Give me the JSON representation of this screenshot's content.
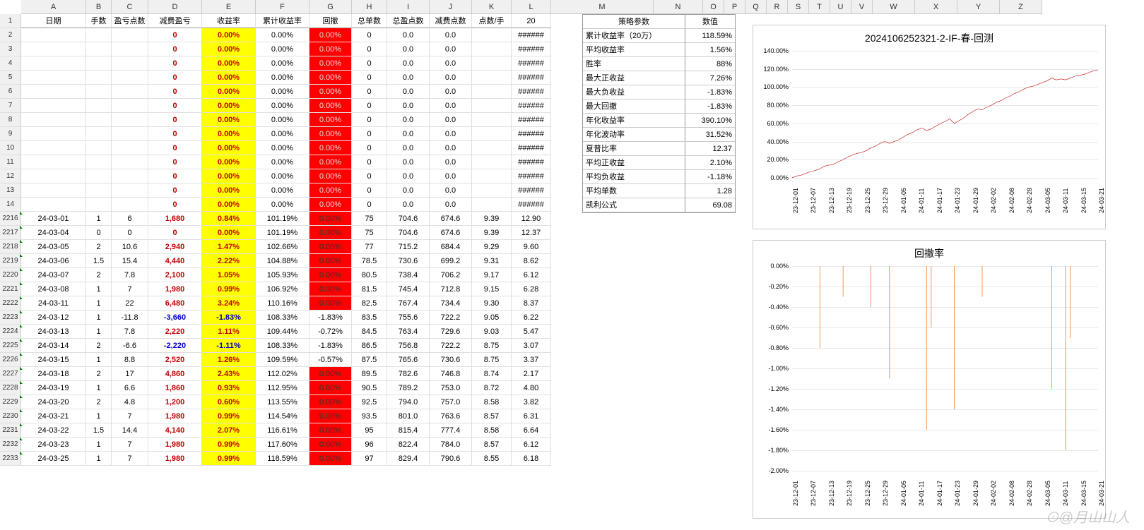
{
  "colLetters": [
    "A",
    "B",
    "C",
    "D",
    "E",
    "F",
    "G",
    "H",
    "I",
    "J",
    "K",
    "L",
    "M",
    "N",
    "O",
    "P",
    "Q",
    "R",
    "S",
    "T",
    "U",
    "V",
    "W",
    "X",
    "Y",
    "Z"
  ],
  "colLetterWidths": [
    92,
    36,
    52,
    76,
    76,
    76,
    60,
    50,
    60,
    60,
    56,
    56,
    145,
    70,
    30,
    30,
    30,
    30,
    30,
    30,
    30,
    30,
    60,
    60,
    60,
    60
  ],
  "rowNums1": [
    1,
    2,
    3,
    4,
    5,
    6,
    7,
    8,
    9,
    10,
    11,
    12,
    13,
    14
  ],
  "rowNums2": [
    2216,
    2217,
    2218,
    2219,
    2220,
    2221,
    2222,
    2223,
    2224,
    2225,
    2226,
    2227,
    2228,
    2229,
    2230,
    2231,
    2232,
    2233
  ],
  "headers": [
    "日期",
    "手数",
    "盈亏点数",
    "减费盈亏",
    "收益率",
    "累计收益率",
    "回撤",
    "总单数",
    "总盈点数",
    "减费点数",
    "点数/手",
    "20"
  ],
  "topRows": [
    {
      "D": "0",
      "E": "0.00%",
      "F": "0.00%",
      "G": "0.00%",
      "H": "0",
      "I": "0.0",
      "J": "0.0",
      "L": "######"
    },
    {
      "D": "0",
      "E": "0.00%",
      "F": "0.00%",
      "G": "0.00%",
      "H": "0",
      "I": "0.0",
      "J": "0.0",
      "L": "######"
    },
    {
      "D": "0",
      "E": "0.00%",
      "F": "0.00%",
      "G": "0.00%",
      "H": "0",
      "I": "0.0",
      "J": "0.0",
      "L": "######"
    },
    {
      "D": "0",
      "E": "0.00%",
      "F": "0.00%",
      "G": "0.00%",
      "H": "0",
      "I": "0.0",
      "J": "0.0",
      "L": "######"
    },
    {
      "D": "0",
      "E": "0.00%",
      "F": "0.00%",
      "G": "0.00%",
      "H": "0",
      "I": "0.0",
      "J": "0.0",
      "L": "######"
    },
    {
      "D": "0",
      "E": "0.00%",
      "F": "0.00%",
      "G": "0.00%",
      "H": "0",
      "I": "0.0",
      "J": "0.0",
      "L": "######"
    },
    {
      "D": "0",
      "E": "0.00%",
      "F": "0.00%",
      "G": "0.00%",
      "H": "0",
      "I": "0.0",
      "J": "0.0",
      "L": "######"
    },
    {
      "D": "0",
      "E": "0.00%",
      "F": "0.00%",
      "G": "0.00%",
      "H": "0",
      "I": "0.0",
      "J": "0.0",
      "L": "######"
    },
    {
      "D": "0",
      "E": "0.00%",
      "F": "0.00%",
      "G": "0.00%",
      "H": "0",
      "I": "0.0",
      "J": "0.0",
      "L": "######"
    },
    {
      "D": "0",
      "E": "0.00%",
      "F": "0.00%",
      "G": "0.00%",
      "H": "0",
      "I": "0.0",
      "J": "0.0",
      "L": "######"
    },
    {
      "D": "0",
      "E": "0.00%",
      "F": "0.00%",
      "G": "0.00%",
      "H": "0",
      "I": "0.0",
      "J": "0.0",
      "L": "######"
    },
    {
      "D": "0",
      "E": "0.00%",
      "F": "0.00%",
      "G": "0.00%",
      "H": "0",
      "I": "0.0",
      "J": "0.0",
      "L": "######"
    },
    {
      "D": "0",
      "E": "0.00%",
      "F": "0.00%",
      "G": "0.00%",
      "H": "0",
      "I": "0.0",
      "J": "0.0",
      "L": "######"
    }
  ],
  "dataRows": [
    {
      "A": "24-03-01",
      "B": "1",
      "C": "6",
      "D": "1,680",
      "Dn": false,
      "E": "0.84%",
      "F": "101.19%",
      "G": "0.00%",
      "Gred": true,
      "H": "75",
      "I": "704.6",
      "J": "674.6",
      "K": "9.39",
      "L": "12.90"
    },
    {
      "A": "24-03-04",
      "B": "0",
      "C": "0",
      "D": "0",
      "Dn": false,
      "E": "0.00%",
      "F": "101.19%",
      "G": "0.00%",
      "Gred": true,
      "H": "75",
      "I": "704.6",
      "J": "674.6",
      "K": "9.39",
      "L": "12.37"
    },
    {
      "A": "24-03-05",
      "B": "2",
      "C": "10.6",
      "D": "2,940",
      "Dn": false,
      "E": "1.47%",
      "F": "102.66%",
      "G": "0.00%",
      "Gred": true,
      "H": "77",
      "I": "715.2",
      "J": "684.4",
      "K": "9.29",
      "L": "9.60"
    },
    {
      "A": "24-03-06",
      "B": "1.5",
      "C": "15.4",
      "D": "4,440",
      "Dn": false,
      "E": "2.22%",
      "F": "104.88%",
      "G": "0.00%",
      "Gred": true,
      "H": "78.5",
      "I": "730.6",
      "J": "699.2",
      "K": "9.31",
      "L": "8.62"
    },
    {
      "A": "24-03-07",
      "B": "2",
      "C": "7.8",
      "D": "2,100",
      "Dn": false,
      "E": "1.05%",
      "F": "105.93%",
      "G": "0.00%",
      "Gred": true,
      "H": "80.5",
      "I": "738.4",
      "J": "706.2",
      "K": "9.17",
      "L": "6.12"
    },
    {
      "A": "24-03-08",
      "B": "1",
      "C": "7",
      "D": "1,980",
      "Dn": false,
      "E": "0.99%",
      "F": "106.92%",
      "G": "0.00%",
      "Gred": true,
      "H": "81.5",
      "I": "745.4",
      "J": "712.8",
      "K": "9.15",
      "L": "6.28"
    },
    {
      "A": "24-03-11",
      "B": "1",
      "C": "22",
      "D": "6,480",
      "Dn": false,
      "E": "3.24%",
      "F": "110.16%",
      "G": "0.00%",
      "Gred": true,
      "H": "82.5",
      "I": "767.4",
      "J": "734.4",
      "K": "9.30",
      "L": "8.37"
    },
    {
      "A": "24-03-12",
      "B": "1",
      "C": "-11.8",
      "D": "-3,660",
      "Dn": true,
      "E": "-1.83%",
      "F": "108.33%",
      "G": "-1.83%",
      "Gred": false,
      "H": "83.5",
      "I": "755.6",
      "J": "722.2",
      "K": "9.05",
      "L": "6.22"
    },
    {
      "A": "24-03-13",
      "B": "1",
      "C": "7.8",
      "D": "2,220",
      "Dn": false,
      "E": "1.11%",
      "F": "109.44%",
      "G": "-0.72%",
      "Gred": false,
      "H": "84.5",
      "I": "763.4",
      "J": "729.6",
      "K": "9.03",
      "L": "5.47"
    },
    {
      "A": "24-03-14",
      "B": "2",
      "C": "-6.6",
      "D": "-2,220",
      "Dn": true,
      "E": "-1.11%",
      "F": "108.33%",
      "G": "-1.83%",
      "Gred": false,
      "H": "86.5",
      "I": "756.8",
      "J": "722.2",
      "K": "8.75",
      "L": "3.07"
    },
    {
      "A": "24-03-15",
      "B": "1",
      "C": "8.8",
      "D": "2,520",
      "Dn": false,
      "E": "1.26%",
      "F": "109.59%",
      "G": "-0.57%",
      "Gred": false,
      "H": "87.5",
      "I": "765.6",
      "J": "730.6",
      "K": "8.75",
      "L": "3.37"
    },
    {
      "A": "24-03-18",
      "B": "2",
      "C": "17",
      "D": "4,860",
      "Dn": false,
      "E": "2.43%",
      "F": "112.02%",
      "G": "0.00%",
      "Gred": true,
      "H": "89.5",
      "I": "782.6",
      "J": "746.8",
      "K": "8.74",
      "L": "2.17"
    },
    {
      "A": "24-03-19",
      "B": "1",
      "C": "6.6",
      "D": "1,860",
      "Dn": false,
      "E": "0.93%",
      "F": "112.95%",
      "G": "0.00%",
      "Gred": true,
      "H": "90.5",
      "I": "789.2",
      "J": "753.0",
      "K": "8.72",
      "L": "4.80"
    },
    {
      "A": "24-03-20",
      "B": "2",
      "C": "4.8",
      "D": "1,200",
      "Dn": false,
      "E": "0.60%",
      "F": "113.55%",
      "G": "0.00%",
      "Gred": true,
      "H": "92.5",
      "I": "794.0",
      "J": "757.0",
      "K": "8.58",
      "L": "3.82"
    },
    {
      "A": "24-03-21",
      "B": "1",
      "C": "7",
      "D": "1,980",
      "Dn": false,
      "E": "0.99%",
      "F": "114.54%",
      "G": "0.00%",
      "Gred": true,
      "H": "93.5",
      "I": "801.0",
      "J": "763.6",
      "K": "8.57",
      "L": "6.31"
    },
    {
      "A": "24-03-22",
      "B": "1.5",
      "C": "14.4",
      "D": "4,140",
      "Dn": false,
      "E": "2.07%",
      "F": "116.61%",
      "G": "0.00%",
      "Gred": true,
      "H": "95",
      "I": "815.4",
      "J": "777.4",
      "K": "8.58",
      "L": "6.64"
    },
    {
      "A": "24-03-23",
      "B": "1",
      "C": "7",
      "D": "1,980",
      "Dn": false,
      "E": "0.99%",
      "F": "117.60%",
      "G": "0.00%",
      "Gred": true,
      "H": "96",
      "I": "822.4",
      "J": "784.0",
      "K": "8.57",
      "L": "6.12"
    },
    {
      "A": "24-03-25",
      "B": "1",
      "C": "7",
      "D": "1,980",
      "Dn": false,
      "E": "0.99%",
      "F": "118.59%",
      "G": "0.00%",
      "Gred": true,
      "H": "97",
      "I": "829.4",
      "J": "790.6",
      "K": "8.55",
      "L": "6.18"
    }
  ],
  "strategy": {
    "header": {
      "label": "策略参数",
      "value": "数值"
    },
    "rows": [
      {
        "label": "累计收益率（20万）",
        "value": "118.59%"
      },
      {
        "label": "平均收益率",
        "value": "1.56%"
      },
      {
        "label": "胜率",
        "value": "88%"
      },
      {
        "label": "最大正收益",
        "value": "7.26%"
      },
      {
        "label": "最大负收益",
        "value": "-1.83%"
      },
      {
        "label": "最大回撤",
        "value": "-1.83%"
      },
      {
        "label": "年化收益率",
        "value": "390.10%"
      },
      {
        "label": "年化波动率",
        "value": "31.52%"
      },
      {
        "label": "夏普比率",
        "value": "12.37"
      },
      {
        "label": "平均正收益",
        "value": "2.10%"
      },
      {
        "label": "平均负收益",
        "value": "-1.18%"
      },
      {
        "label": "平均单数",
        "value": "1.28"
      },
      {
        "label": "凯利公式",
        "value": "69.08"
      }
    ]
  },
  "chart1": {
    "title": "2024106252321-2-IF-春-回测",
    "ylabels": [
      "140.00%",
      "120.00%",
      "100.00%",
      "80.00%",
      "60.00%",
      "40.00%",
      "20.00%",
      "0.00%"
    ],
    "ylim": [
      0,
      140
    ],
    "xlabels": [
      "23-12-01",
      "23-12-07",
      "23-12-13",
      "23-12-19",
      "23-12-25",
      "23-12-29",
      "24-01-05",
      "24-01-11",
      "24-01-17",
      "24-01-23",
      "24-01-29",
      "24-02-02",
      "24-02-08",
      "24-02-28",
      "24-03-05",
      "24-03-11",
      "24-03-15",
      "24-03-21"
    ],
    "series": [
      0,
      2,
      3,
      5,
      7,
      8,
      10,
      13,
      14,
      15,
      18,
      20,
      23,
      25,
      27,
      28,
      30,
      33,
      35,
      38,
      40,
      38,
      40,
      42,
      45,
      48,
      50,
      53,
      55,
      52,
      54,
      57,
      60,
      62,
      65,
      60,
      63,
      66,
      70,
      73,
      76,
      75,
      78,
      80,
      83,
      85,
      88,
      90,
      93,
      95,
      98,
      100,
      101,
      103,
      105,
      107,
      110,
      108,
      109,
      108,
      110,
      112,
      113,
      114,
      116,
      118,
      119
    ],
    "line_color": "#c00000"
  },
  "chart2": {
    "title": "回撤率",
    "ylabels": [
      "0.00%",
      "-0.20%",
      "-0.40%",
      "-0.60%",
      "-0.80%",
      "-1.00%",
      "-1.20%",
      "-1.40%",
      "-1.60%",
      "-1.80%",
      "-2.00%"
    ],
    "ylim": [
      -2,
      0
    ],
    "xlabels": [
      "23-12-01",
      "23-12-07",
      "23-12-13",
      "23-12-19",
      "23-12-25",
      "23-12-29",
      "24-01-05",
      "24-01-11",
      "24-01-17",
      "24-01-23",
      "24-01-29",
      "24-02-02",
      "24-02-08",
      "24-02-28",
      "24-03-05",
      "24-03-11",
      "24-03-15",
      "24-03-21"
    ],
    "bars": [
      0,
      0,
      0,
      0,
      0,
      0,
      -0.8,
      0,
      0,
      0,
      0,
      -0.3,
      0,
      0,
      0,
      0,
      0,
      -0.4,
      0,
      0,
      0,
      -1.1,
      0,
      0,
      0,
      0,
      0,
      0,
      0,
      -1.6,
      -0.6,
      0,
      0,
      0,
      0,
      -1.4,
      0,
      0,
      0,
      0,
      0,
      -0.3,
      0,
      0,
      0,
      0,
      0,
      0,
      0,
      0,
      0,
      0,
      0,
      0,
      0,
      0,
      -1.2,
      0,
      0,
      -1.8,
      -0.7,
      0,
      0,
      0,
      0,
      0,
      0
    ],
    "bar_color": "#ed7d31"
  },
  "watermark": "⊙@月山山人"
}
